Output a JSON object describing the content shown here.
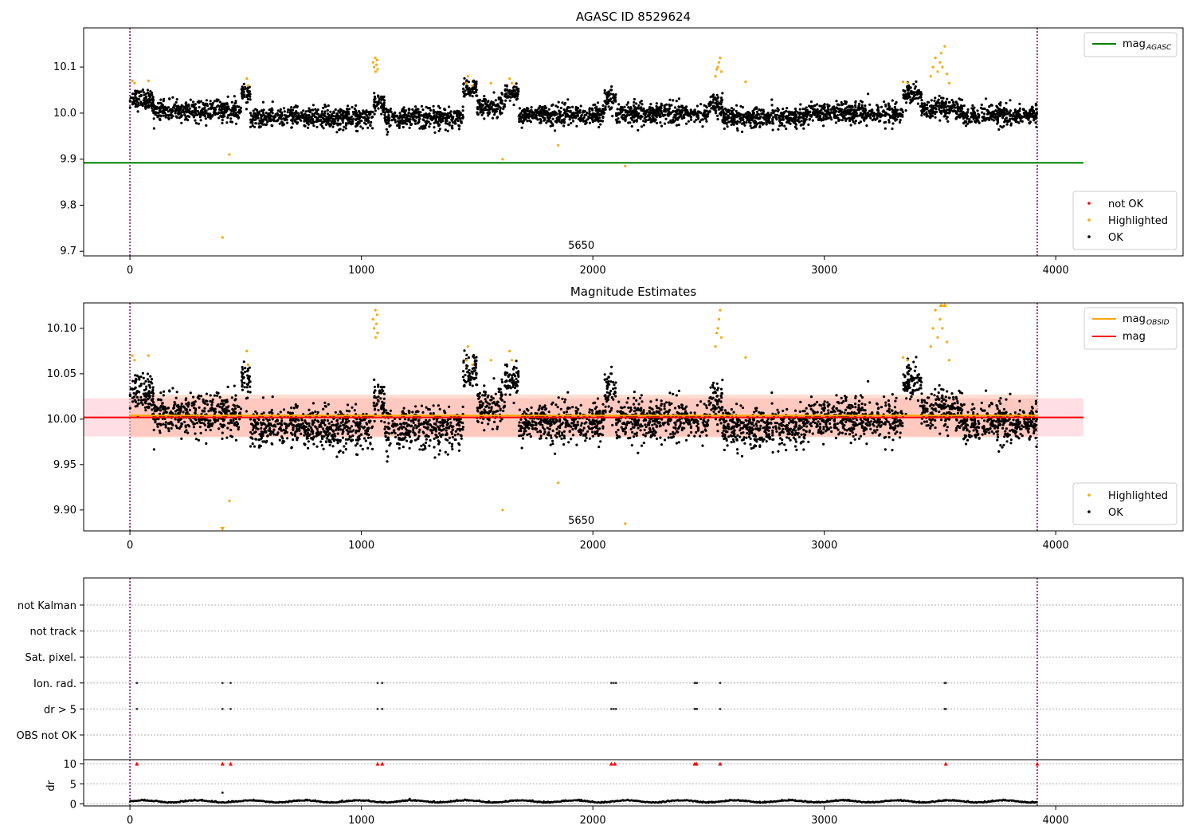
{
  "chart_data": [
    {
      "type": "scatter",
      "title": "AGASC ID 8529624",
      "xlim": [
        -200,
        4550
      ],
      "ylim": [
        9.69,
        10.185
      ],
      "xticks": [
        0,
        1000,
        2000,
        3000,
        4000
      ],
      "yticks": [
        9.7,
        9.8,
        9.9,
        10.0,
        10.1
      ],
      "ytick_labels": [
        "9.7",
        "9.8",
        "9.9",
        "10.0",
        "10.1"
      ],
      "vlines": [
        0,
        3920
      ],
      "vline_color": "#800080",
      "obsid_label": {
        "x": 1950,
        "text": "5650"
      },
      "reference_lines": [
        {
          "name": "mag",
          "sub": "AGASC",
          "y": 9.892,
          "x": [
            -200,
            4120
          ],
          "color": "#008000"
        }
      ],
      "legend_lines": [
        {
          "name": "mag",
          "sub": "AGASC",
          "color": "#008000"
        }
      ],
      "legend_points": [
        {
          "name": "not OK",
          "color": "#ff0000"
        },
        {
          "name": "Highlighted",
          "color": "#ffa500"
        },
        {
          "name": "OK",
          "color": "#000000"
        }
      ],
      "series": [
        {
          "name": "OK",
          "color": "#000000",
          "x_range": [
            0,
            3920
          ],
          "baseline": 10.0,
          "spread": 0.03,
          "segments": [
            {
              "x": [
                0,
                100
              ],
              "y": 10.03
            },
            {
              "x": [
                100,
                480
              ],
              "y": 10.005
            },
            {
              "x": [
                480,
                520
              ],
              "y": 10.04
            },
            {
              "x": [
                520,
                1050
              ],
              "y": 9.99
            },
            {
              "x": [
                1050,
                1100
              ],
              "y": 10.02
            },
            {
              "x": [
                1100,
                1440
              ],
              "y": 9.99
            },
            {
              "x": [
                1440,
                1500
              ],
              "y": 10.05
            },
            {
              "x": [
                1500,
                1620
              ],
              "y": 10.015
            },
            {
              "x": [
                1620,
                1680
              ],
              "y": 10.04
            },
            {
              "x": [
                1680,
                2050
              ],
              "y": 9.995
            },
            {
              "x": [
                2050,
                2100
              ],
              "y": 10.03
            },
            {
              "x": [
                2100,
                2500
              ],
              "y": 10.0
            },
            {
              "x": [
                2500,
                2560
              ],
              "y": 10.02
            },
            {
              "x": [
                2560,
                2920
              ],
              "y": 9.99
            },
            {
              "x": [
                2920,
                3340
              ],
              "y": 10.0
            },
            {
              "x": [
                3340,
                3420
              ],
              "y": 10.04
            },
            {
              "x": [
                3420,
                3600
              ],
              "y": 10.01
            },
            {
              "x": [
                3600,
                3920
              ],
              "y": 9.995
            }
          ]
        },
        {
          "name": "Highlighted",
          "color": "#ffa500",
          "points": [
            [
              10,
              10.07
            ],
            [
              20,
              10.065
            ],
            [
              80,
              10.07
            ],
            [
              400,
              9.73
            ],
            [
              430,
              9.91
            ],
            [
              505,
              10.075
            ],
            [
              510,
              10.06
            ],
            [
              1050,
              10.11
            ],
            [
              1055,
              10.1
            ],
            [
              1060,
              10.12
            ],
            [
              1062,
              10.09
            ],
            [
              1065,
              10.105
            ],
            [
              1068,
              10.115
            ],
            [
              1070,
              10.095
            ],
            [
              1455,
              10.065
            ],
            [
              1460,
              10.08
            ],
            [
              1480,
              10.06
            ],
            [
              1560,
              10.065
            ],
            [
              1610,
              9.9
            ],
            [
              1640,
              10.075
            ],
            [
              1650,
              10.065
            ],
            [
              1850,
              9.93
            ],
            [
              2140,
              9.885
            ],
            [
              2530,
              10.08
            ],
            [
              2535,
              10.095
            ],
            [
              2540,
              10.1
            ],
            [
              2545,
              10.11
            ],
            [
              2550,
              10.12
            ],
            [
              2555,
              10.09
            ],
            [
              2660,
              10.068
            ],
            [
              3340,
              10.068
            ],
            [
              3360,
              10.065
            ],
            [
              3460,
              10.08
            ],
            [
              3470,
              10.1
            ],
            [
              3480,
              10.12
            ],
            [
              3490,
              10.09
            ],
            [
              3500,
              10.11
            ],
            [
              3505,
              10.13
            ],
            [
              3510,
              10.1
            ],
            [
              3520,
              10.145
            ],
            [
              3530,
              10.085
            ],
            [
              3540,
              10.065
            ]
          ]
        }
      ]
    },
    {
      "type": "scatter",
      "title": "Magnitude Estimates",
      "xlim": [
        -200,
        4550
      ],
      "ylim": [
        9.877,
        10.128
      ],
      "xticks": [
        0,
        1000,
        2000,
        3000,
        4000
      ],
      "yticks": [
        9.9,
        9.95,
        10.0,
        10.05,
        10.1
      ],
      "ytick_labels": [
        "9.90",
        "9.95",
        "10.00",
        "10.05",
        "10.10"
      ],
      "vlines": [
        0,
        3920
      ],
      "vline_color": "#800080",
      "obsid_label": {
        "x": 1950,
        "text": "5650"
      },
      "bands": [
        {
          "x": [
            -200,
            4120
          ],
          "y": [
            9.981,
            10.023
          ],
          "color": "#ffc0cb",
          "opacity": 0.5
        },
        {
          "x": [
            0,
            3920
          ],
          "y": [
            9.98,
            10.027
          ],
          "color": "#ffa07a",
          "opacity": 0.35
        }
      ],
      "reference_lines": [
        {
          "name": "mag",
          "sub": "OBSID",
          "y": 10.004,
          "x": [
            0,
            3920
          ],
          "color": "#ffa500"
        },
        {
          "name": "mag",
          "sub": "",
          "y": 10.002,
          "x": [
            -200,
            4120
          ],
          "color": "#ff0000"
        }
      ],
      "legend_lines": [
        {
          "name": "mag",
          "sub": "OBSID",
          "color": "#ffa500"
        },
        {
          "name": "mag",
          "sub": "",
          "color": "#ff0000"
        }
      ],
      "legend_points": [
        {
          "name": "Highlighted",
          "color": "#ffa500"
        },
        {
          "name": "OK",
          "color": "#000000"
        }
      ]
    },
    {
      "type": "scatter",
      "title": "",
      "xlim": [
        -200,
        4550
      ],
      "xticks": [
        0,
        1000,
        2000,
        3000,
        4000
      ],
      "vlines": [
        0,
        3920
      ],
      "vline_color": "#800080",
      "flag_rows": [
        "not Kalman",
        "not track",
        "Sat. pixel.",
        "Ion. rad.",
        "dr > 5",
        "OBS not OK"
      ],
      "flag_points": [
        {
          "row": "Ion. rad.",
          "x": [
            30,
            400,
            435,
            1070,
            1090,
            2080,
            2090,
            2100,
            2440,
            2445,
            2450,
            2550,
            3520,
            3525
          ]
        },
        {
          "row": "dr > 5",
          "x": [
            30,
            400,
            435,
            1070,
            1090,
            2080,
            2090,
            2100,
            2440,
            2445,
            2450,
            2550,
            3520,
            3525
          ]
        }
      ],
      "dr_panel": {
        "ylabel": "dr",
        "ylim": [
          -0.5,
          11
        ],
        "yticks": [
          0,
          5,
          10
        ],
        "ytick_labels": [
          "0",
          "5",
          "10"
        ],
        "clip_markers_x": [
          30,
          400,
          435,
          1070,
          1090,
          2080,
          2095,
          2440,
          2448,
          2550,
          3525,
          3920
        ],
        "outlier": [
          400,
          2.8
        ]
      }
    }
  ]
}
